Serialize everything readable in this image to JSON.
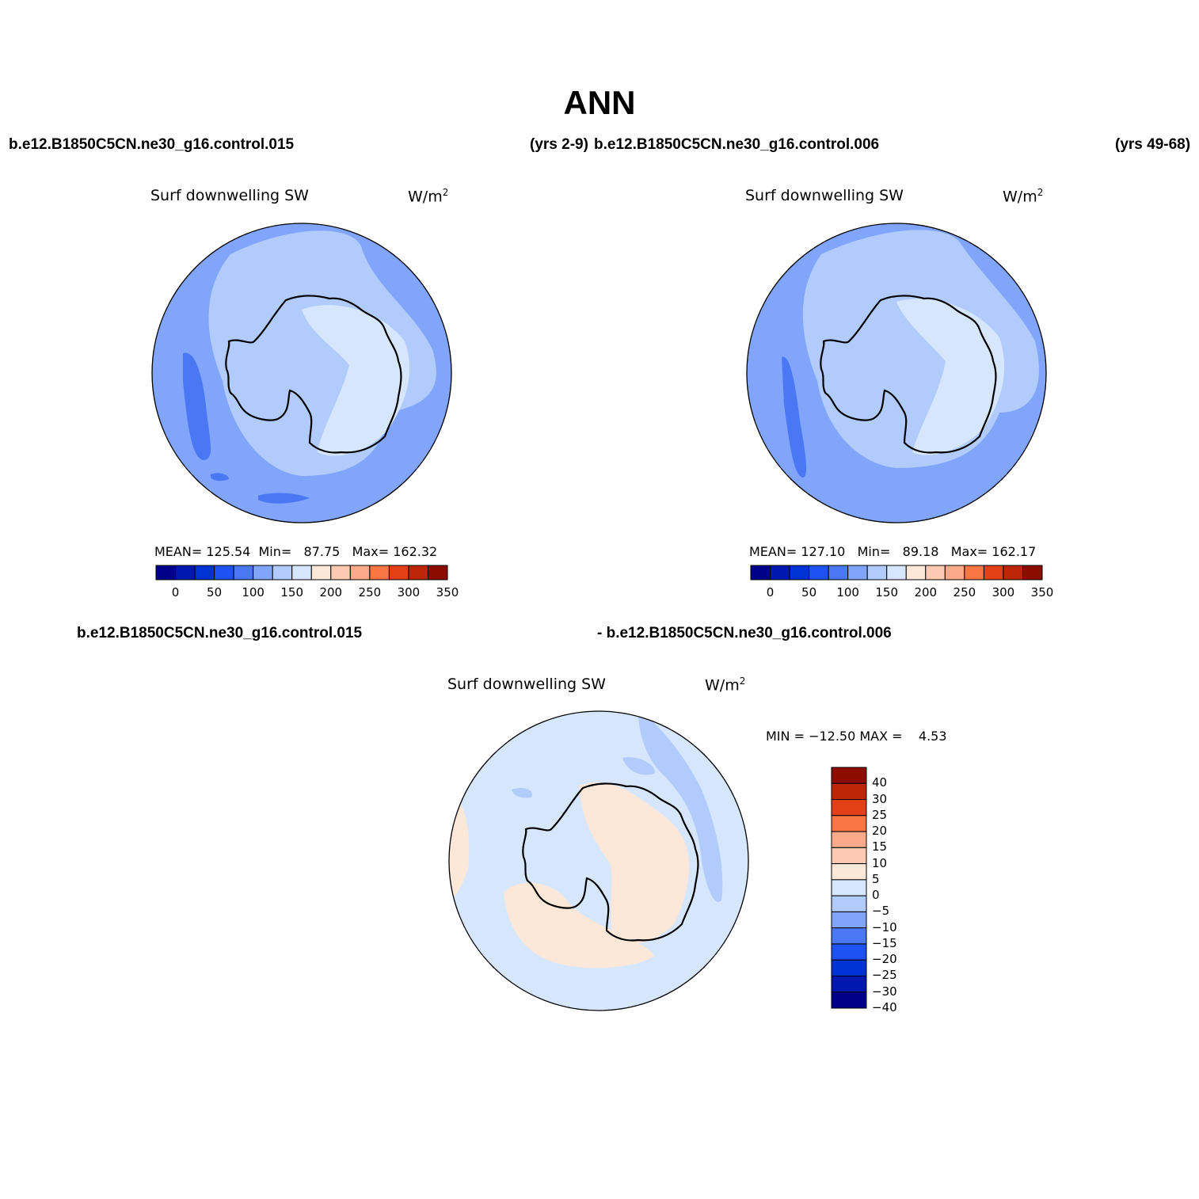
{
  "title": "ANN",
  "panels": [
    {
      "case": "b.e12.B1850C5CN.ne30_g16.control.015",
      "years": "(yrs 2-9)",
      "variable": "Surf downwelling SW",
      "units": "W/m",
      "units_sup": "2",
      "stats": {
        "mean_label": "MEAN=",
        "mean": "125.54",
        "min_label": "Min=",
        "min": "87.75",
        "max_label": "Max=",
        "max": "162.32"
      }
    },
    {
      "case": "b.e12.B1850C5CN.ne30_g16.control.006",
      "years": "(yrs 49-68)",
      "variable": "Surf downwelling SW",
      "units": "W/m",
      "units_sup": "2",
      "stats": {
        "mean_label": "MEAN=",
        "mean": "127.10",
        "min_label": "Min=",
        "min": "89.18",
        "max_label": "Max=",
        "max": "162.17"
      }
    }
  ],
  "diff_panel": {
    "case_a": "b.e12.B1850C5CN.ne30_g16.control.015",
    "case_b": "- b.e12.B1850C5CN.ne30_g16.control.006",
    "variable": "Surf downwelling SW",
    "units": "W/m",
    "units_sup": "2",
    "stats_text": "MIN = −12.50 MAX =    4.53"
  },
  "abs_colorbar": {
    "colors": [
      "#00008b",
      "#0018b0",
      "#0033d6",
      "#1f52f5",
      "#4a78f5",
      "#80a5fa",
      "#b1cbfc",
      "#d6e7fd",
      "#fde7d8",
      "#fccab2",
      "#fba988",
      "#fb7645",
      "#e34017",
      "#bd2708",
      "#8c0c00"
    ],
    "labels": [
      "0",
      "50",
      "100",
      "150",
      "200",
      "250",
      "300",
      "350"
    ]
  },
  "diff_colorbar": {
    "colors": [
      "#8c0c00",
      "#bd2708",
      "#e34017",
      "#fb7645",
      "#fba988",
      "#fccab2",
      "#fde7d8",
      "#d6e7fd",
      "#b1cbfc",
      "#80a5fa",
      "#4a78f5",
      "#1f52f5",
      "#0033d6",
      "#0018b0",
      "#00008b"
    ],
    "labels": [
      "40",
      "30",
      "25",
      "20",
      "15",
      "10",
      "5",
      "0",
      "−5",
      "−10",
      "−15",
      "−20",
      "−25",
      "−30",
      "−40"
    ]
  },
  "chart_data": [
    {
      "type": "heatmap",
      "projection": "polar stereographic (south pole)",
      "title": "Surf downwelling SW",
      "units": "W/m2",
      "mean": 125.54,
      "min": 87.75,
      "max": 162.32,
      "contour_levels": [
        0,
        25,
        50,
        75,
        100,
        125,
        150,
        175,
        200,
        225,
        250,
        275,
        300,
        325,
        350
      ],
      "region_values": {
        "open_ocean": "100-125",
        "antarctic_margin": "125-150",
        "east_antarctic_plateau": "150-175",
        "south_pacific_minimum": "87.75-100"
      }
    },
    {
      "type": "heatmap",
      "projection": "polar stereographic (south pole)",
      "title": "Surf downwelling SW",
      "units": "W/m2",
      "mean": 127.1,
      "min": 89.18,
      "max": 162.17,
      "contour_levels": [
        0,
        25,
        50,
        75,
        100,
        125,
        150,
        175,
        200,
        225,
        250,
        275,
        300,
        325,
        350
      ],
      "region_values": {
        "open_ocean": "100-125",
        "antarctic_margin": "125-150",
        "east_antarctic_plateau": "150-175",
        "south_pacific_minimum": "89.18-100"
      }
    },
    {
      "type": "heatmap",
      "projection": "polar stereographic (south pole)",
      "title": "Surf downwelling SW",
      "units": "W/m2",
      "min": -12.5,
      "max": 4.53,
      "contour_levels": [
        -40,
        -30,
        -25,
        -20,
        -15,
        -10,
        -5,
        0,
        5,
        10,
        15,
        20,
        25,
        30,
        40
      ],
      "region_values": {
        "most_ocean": "-5 to 0",
        "east_antarctica": "0 to 5",
        "southern_atlantic": "0 to 5",
        "indian_ocean_band": "-10 to -5"
      }
    }
  ]
}
